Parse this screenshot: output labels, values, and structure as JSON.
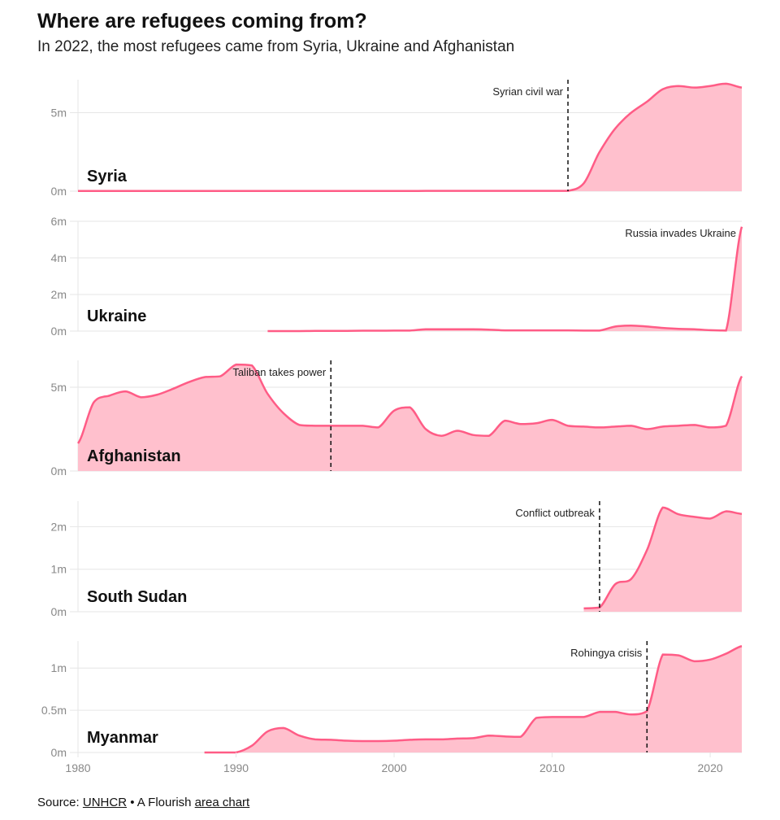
{
  "header": {
    "title": "Where are refugees coming from?",
    "subtitle": "In 2022, the most refugees came from Syria, Ukraine and Afghanistan"
  },
  "footer": {
    "source_prefix": "Source: ",
    "source_link": "UNHCR",
    "separator": " • A Flourish ",
    "chart_link": "area chart"
  },
  "colors": {
    "line": "#ff5c86",
    "fill": "#ffc0cd",
    "grid": "#e6e6e6",
    "axis_text": "#888888"
  },
  "chart_data": {
    "type": "area",
    "layout": "small multiples",
    "xlim": [
      1980,
      2022
    ],
    "x_ticks": [
      "1980",
      "1990",
      "2000",
      "2010",
      "2020"
    ],
    "grid": true,
    "panels": [
      {
        "name": "Syria",
        "ylim": [
          0,
          7.1
        ],
        "y_ticks": [
          {
            "v": 0,
            "label": "0m"
          },
          {
            "v": 5,
            "label": "5m"
          }
        ],
        "annotation": {
          "year": 2011,
          "label": "Syrian civil war",
          "line": true
        },
        "x": [
          1980,
          1981,
          1982,
          1983,
          1984,
          1985,
          1986,
          1987,
          1988,
          1989,
          1990,
          1991,
          1992,
          1993,
          1994,
          1995,
          1996,
          1997,
          1998,
          1999,
          2000,
          2001,
          2002,
          2003,
          2004,
          2005,
          2006,
          2007,
          2008,
          2009,
          2010,
          2011,
          2012,
          2013,
          2014,
          2015,
          2016,
          2017,
          2018,
          2019,
          2020,
          2021,
          2022
        ],
        "values": [
          0.01,
          0.01,
          0.01,
          0.01,
          0.01,
          0.01,
          0.01,
          0.01,
          0.01,
          0.01,
          0.01,
          0.01,
          0.01,
          0.01,
          0.01,
          0.01,
          0.01,
          0.01,
          0.01,
          0.01,
          0.01,
          0.01,
          0.02,
          0.02,
          0.02,
          0.02,
          0.02,
          0.02,
          0.02,
          0.02,
          0.02,
          0.02,
          0.5,
          2.5,
          4.0,
          5.0,
          5.7,
          6.5,
          6.7,
          6.6,
          6.7,
          6.85,
          6.6
        ]
      },
      {
        "name": "Ukraine",
        "ylim": [
          0,
          6
        ],
        "y_ticks": [
          {
            "v": 0,
            "label": "0m"
          },
          {
            "v": 2,
            "label": "2m"
          },
          {
            "v": 4,
            "label": "4m"
          },
          {
            "v": 6,
            "label": "6m"
          }
        ],
        "annotation": {
          "year": 2022,
          "label": "Russia invades Ukraine",
          "line": false
        },
        "x": [
          1992,
          1993,
          1994,
          1995,
          1996,
          1997,
          1998,
          1999,
          2000,
          2001,
          2002,
          2003,
          2004,
          2005,
          2006,
          2007,
          2008,
          2009,
          2010,
          2011,
          2012,
          2013,
          2014,
          2015,
          2016,
          2017,
          2018,
          2019,
          2020,
          2021,
          2022
        ],
        "values": [
          0.0,
          0.0,
          0.0,
          0.01,
          0.01,
          0.01,
          0.02,
          0.02,
          0.03,
          0.03,
          0.1,
          0.1,
          0.1,
          0.1,
          0.08,
          0.04,
          0.04,
          0.04,
          0.04,
          0.04,
          0.03,
          0.03,
          0.25,
          0.3,
          0.25,
          0.17,
          0.12,
          0.1,
          0.05,
          0.03,
          5.7
        ]
      },
      {
        "name": "Afghanistan",
        "ylim": [
          0,
          6.6
        ],
        "y_ticks": [
          {
            "v": 0,
            "label": "0m"
          },
          {
            "v": 5,
            "label": "5m"
          }
        ],
        "annotation": {
          "year": 1996,
          "label": "Taliban takes power",
          "line": true
        },
        "x": [
          1980,
          1981,
          1982,
          1983,
          1984,
          1985,
          1986,
          1987,
          1988,
          1989,
          1990,
          1991,
          1992,
          1993,
          1994,
          1995,
          1996,
          1997,
          1998,
          1999,
          2000,
          2001,
          2002,
          2003,
          2004,
          2005,
          2006,
          2007,
          2008,
          2009,
          2010,
          2011,
          2012,
          2013,
          2014,
          2015,
          2016,
          2017,
          2018,
          2019,
          2020,
          2021,
          2022
        ],
        "values": [
          1.65,
          4.1,
          4.5,
          4.75,
          4.4,
          4.55,
          4.9,
          5.3,
          5.6,
          5.65,
          6.35,
          6.3,
          4.6,
          3.45,
          2.75,
          2.7,
          2.7,
          2.7,
          2.7,
          2.6,
          3.6,
          3.8,
          2.5,
          2.1,
          2.4,
          2.15,
          2.1,
          3.0,
          2.8,
          2.85,
          3.05,
          2.7,
          2.65,
          2.6,
          2.65,
          2.7,
          2.5,
          2.65,
          2.7,
          2.75,
          2.6,
          2.7,
          5.65
        ]
      },
      {
        "name": "South Sudan",
        "ylim": [
          0,
          2.6
        ],
        "y_ticks": [
          {
            "v": 0,
            "label": "0m"
          },
          {
            "v": 1,
            "label": "1m"
          },
          {
            "v": 2,
            "label": "2m"
          }
        ],
        "annotation": {
          "year": 2013,
          "label": "Conflict outbreak",
          "line": true
        },
        "x": [
          2012,
          2013,
          2014,
          2015,
          2016,
          2017,
          2018,
          2019,
          2020,
          2021,
          2022
        ],
        "values": [
          0.08,
          0.1,
          0.65,
          0.77,
          1.45,
          2.45,
          2.29,
          2.23,
          2.19,
          2.36,
          2.3
        ]
      },
      {
        "name": "Myanmar",
        "ylim": [
          0,
          1.32
        ],
        "y_ticks": [
          {
            "v": 0,
            "label": "0m"
          },
          {
            "v": 0.5,
            "label": "0.5m"
          },
          {
            "v": 1,
            "label": "1m"
          }
        ],
        "annotation": {
          "year": 2016,
          "label": "Rohingya crisis",
          "line": true
        },
        "x": [
          1988,
          1989,
          1990,
          1991,
          1992,
          1993,
          1994,
          1995,
          1996,
          1997,
          1998,
          1999,
          2000,
          2001,
          2002,
          2003,
          2004,
          2005,
          2006,
          2007,
          2008,
          2009,
          2010,
          2011,
          2012,
          2013,
          2014,
          2015,
          2016,
          2017,
          2018,
          2019,
          2020,
          2021,
          2022
        ],
        "values": [
          0.0,
          0.0,
          0.0,
          0.08,
          0.25,
          0.29,
          0.2,
          0.155,
          0.15,
          0.14,
          0.135,
          0.135,
          0.14,
          0.15,
          0.155,
          0.155,
          0.165,
          0.17,
          0.2,
          0.19,
          0.185,
          0.41,
          0.42,
          0.42,
          0.42,
          0.48,
          0.48,
          0.45,
          0.49,
          1.16,
          1.15,
          1.08,
          1.1,
          1.17,
          1.26
        ]
      }
    ]
  }
}
